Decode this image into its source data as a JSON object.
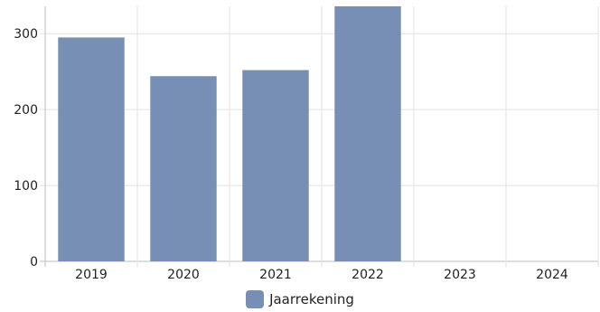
{
  "chart_data": {
    "type": "bar",
    "categories": [
      "2019",
      "2020",
      "2021",
      "2022",
      "2023",
      "2024"
    ],
    "series": [
      {
        "name": "Jaarrekening",
        "values": [
          295,
          244,
          252,
          340,
          null,
          null
        ],
        "color": "#778fb5"
      }
    ],
    "ylim": [
      0,
      336
    ],
    "yticks": [
      0,
      100,
      200,
      300
    ],
    "grid": true,
    "legend_position": "bottom"
  }
}
